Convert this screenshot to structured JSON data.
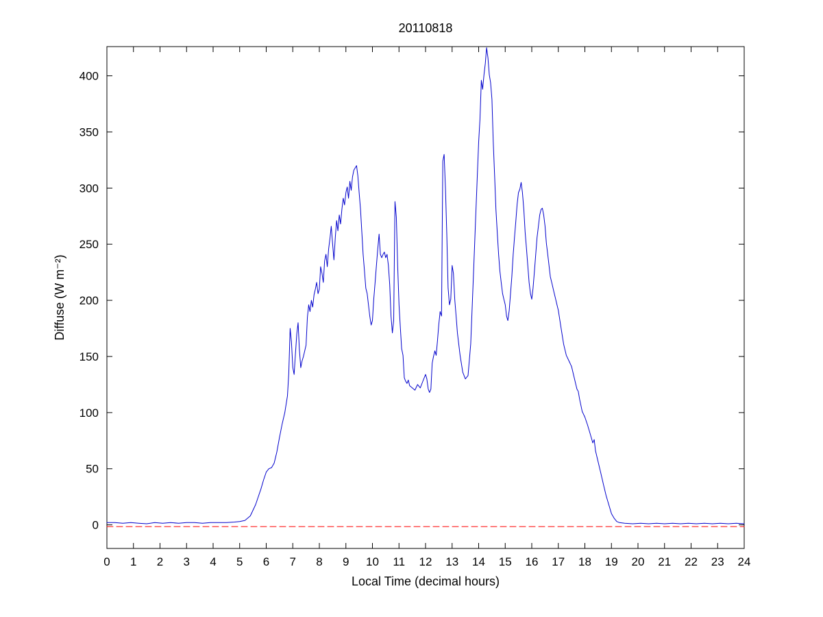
{
  "chart_data": {
    "type": "line",
    "title": "20110818",
    "xlabel": "Local Time (decimal hours)",
    "ylabel": "Diffuse (W m⁻²)",
    "xlim": [
      0,
      24
    ],
    "ylim": [
      -21,
      426
    ],
    "xticks": [
      0,
      1,
      2,
      3,
      4,
      5,
      6,
      7,
      8,
      9,
      10,
      11,
      12,
      13,
      14,
      15,
      16,
      17,
      18,
      19,
      20,
      21,
      22,
      23,
      24
    ],
    "yticks": [
      0,
      50,
      100,
      150,
      200,
      250,
      300,
      350,
      400
    ],
    "grid": false,
    "legend": null,
    "background": "#ffffff",
    "series": [
      {
        "name": "zero-reference",
        "color": "#ff0000",
        "style": "dashed",
        "points": [
          [
            0,
            -1.5
          ],
          [
            24,
            -1.5
          ]
        ]
      },
      {
        "name": "diffuse",
        "color": "#0000cc",
        "style": "solid",
        "points": [
          [
            0,
            2
          ],
          [
            0.3,
            2
          ],
          [
            0.6,
            1.5
          ],
          [
            0.9,
            2
          ],
          [
            1.2,
            1.5
          ],
          [
            1.5,
            1
          ],
          [
            1.8,
            2
          ],
          [
            2.1,
            1.5
          ],
          [
            2.4,
            2
          ],
          [
            2.7,
            1.5
          ],
          [
            3,
            2
          ],
          [
            3.3,
            2
          ],
          [
            3.6,
            1.5
          ],
          [
            3.9,
            2
          ],
          [
            4.2,
            2
          ],
          [
            4.5,
            2
          ],
          [
            4.8,
            2.5
          ],
          [
            5,
            3
          ],
          [
            5.2,
            4
          ],
          [
            5.4,
            8
          ],
          [
            5.6,
            18
          ],
          [
            5.8,
            32
          ],
          [
            5.9,
            40
          ],
          [
            6,
            47
          ],
          [
            6.1,
            50
          ],
          [
            6.2,
            51
          ],
          [
            6.3,
            55
          ],
          [
            6.4,
            65
          ],
          [
            6.5,
            78
          ],
          [
            6.6,
            90
          ],
          [
            6.7,
            100
          ],
          [
            6.8,
            115
          ],
          [
            6.85,
            135
          ],
          [
            6.9,
            175
          ],
          [
            6.95,
            163
          ],
          [
            7,
            140
          ],
          [
            7.05,
            134
          ],
          [
            7.1,
            152
          ],
          [
            7.15,
            170
          ],
          [
            7.2,
            180
          ],
          [
            7.25,
            156
          ],
          [
            7.3,
            140
          ],
          [
            7.35,
            146
          ],
          [
            7.4,
            150
          ],
          [
            7.45,
            155
          ],
          [
            7.5,
            160
          ],
          [
            7.55,
            185
          ],
          [
            7.6,
            196
          ],
          [
            7.65,
            190
          ],
          [
            7.7,
            200
          ],
          [
            7.75,
            194
          ],
          [
            7.8,
            205
          ],
          [
            7.85,
            210
          ],
          [
            7.9,
            216
          ],
          [
            7.95,
            206
          ],
          [
            8,
            210
          ],
          [
            8.05,
            230
          ],
          [
            8.1,
            224
          ],
          [
            8.15,
            216
          ],
          [
            8.2,
            235
          ],
          [
            8.25,
            241
          ],
          [
            8.3,
            230
          ],
          [
            8.35,
            246
          ],
          [
            8.4,
            255
          ],
          [
            8.45,
            266
          ],
          [
            8.5,
            250
          ],
          [
            8.55,
            236
          ],
          [
            8.6,
            256
          ],
          [
            8.65,
            271
          ],
          [
            8.7,
            262
          ],
          [
            8.75,
            276
          ],
          [
            8.8,
            268
          ],
          [
            8.85,
            281
          ],
          [
            8.9,
            291
          ],
          [
            8.95,
            285
          ],
          [
            9,
            296
          ],
          [
            9.05,
            301
          ],
          [
            9.1,
            291
          ],
          [
            9.15,
            306
          ],
          [
            9.2,
            298
          ],
          [
            9.25,
            310
          ],
          [
            9.3,
            316
          ],
          [
            9.4,
            320
          ],
          [
            9.45,
            311
          ],
          [
            9.5,
            296
          ],
          [
            9.55,
            281
          ],
          [
            9.6,
            261
          ],
          [
            9.65,
            241
          ],
          [
            9.7,
            226
          ],
          [
            9.75,
            211
          ],
          [
            9.8,
            206
          ],
          [
            9.85,
            196
          ],
          [
            9.9,
            186
          ],
          [
            9.95,
            178
          ],
          [
            10,
            182
          ],
          [
            10.05,
            201
          ],
          [
            10.1,
            216
          ],
          [
            10.15,
            231
          ],
          [
            10.2,
            246
          ],
          [
            10.25,
            259
          ],
          [
            10.3,
            241
          ],
          [
            10.35,
            238
          ],
          [
            10.4,
            241
          ],
          [
            10.45,
            243
          ],
          [
            10.5,
            238
          ],
          [
            10.55,
            241
          ],
          [
            10.6,
            231
          ],
          [
            10.65,
            214
          ],
          [
            10.7,
            186
          ],
          [
            10.75,
            171
          ],
          [
            10.8,
            182
          ],
          [
            10.85,
            288
          ],
          [
            10.9,
            274
          ],
          [
            10.95,
            231
          ],
          [
            11,
            196
          ],
          [
            11.05,
            176
          ],
          [
            11.1,
            157
          ],
          [
            11.15,
            151
          ],
          [
            11.2,
            131
          ],
          [
            11.25,
            128
          ],
          [
            11.3,
            126
          ],
          [
            11.35,
            129
          ],
          [
            11.4,
            124
          ],
          [
            11.5,
            122
          ],
          [
            11.6,
            120
          ],
          [
            11.7,
            125
          ],
          [
            11.8,
            122
          ],
          [
            11.9,
            128
          ],
          [
            12,
            134
          ],
          [
            12.05,
            130
          ],
          [
            12.1,
            121
          ],
          [
            12.15,
            118
          ],
          [
            12.2,
            121
          ],
          [
            12.25,
            144
          ],
          [
            12.3,
            150
          ],
          [
            12.35,
            155
          ],
          [
            12.4,
            151
          ],
          [
            12.45,
            164
          ],
          [
            12.5,
            179
          ],
          [
            12.55,
            190
          ],
          [
            12.6,
            186
          ],
          [
            12.65,
            324
          ],
          [
            12.7,
            330
          ],
          [
            12.75,
            299
          ],
          [
            12.8,
            259
          ],
          [
            12.85,
            211
          ],
          [
            12.9,
            196
          ],
          [
            12.95,
            201
          ],
          [
            13,
            231
          ],
          [
            13.05,
            224
          ],
          [
            13.1,
            201
          ],
          [
            13.15,
            186
          ],
          [
            13.2,
            171
          ],
          [
            13.3,
            151
          ],
          [
            13.4,
            136
          ],
          [
            13.5,
            130
          ],
          [
            13.6,
            133
          ],
          [
            13.7,
            161
          ],
          [
            13.8,
            221
          ],
          [
            13.9,
            281
          ],
          [
            14,
            341
          ],
          [
            14.05,
            361
          ],
          [
            14.1,
            396
          ],
          [
            14.15,
            388
          ],
          [
            14.2,
            401
          ],
          [
            14.25,
            411
          ],
          [
            14.3,
            425
          ],
          [
            14.35,
            416
          ],
          [
            14.4,
            401
          ],
          [
            14.45,
            394
          ],
          [
            14.5,
            379
          ],
          [
            14.55,
            341
          ],
          [
            14.6,
            311
          ],
          [
            14.65,
            281
          ],
          [
            14.7,
            261
          ],
          [
            14.75,
            241
          ],
          [
            14.8,
            226
          ],
          [
            14.85,
            216
          ],
          [
            14.9,
            206
          ],
          [
            14.95,
            201
          ],
          [
            15,
            196
          ],
          [
            15.05,
            186
          ],
          [
            15.1,
            182
          ],
          [
            15.15,
            191
          ],
          [
            15.2,
            206
          ],
          [
            15.25,
            221
          ],
          [
            15.3,
            241
          ],
          [
            15.35,
            256
          ],
          [
            15.4,
            271
          ],
          [
            15.45,
            286
          ],
          [
            15.5,
            296
          ],
          [
            15.55,
            299
          ],
          [
            15.6,
            305
          ],
          [
            15.65,
            296
          ],
          [
            15.7,
            281
          ],
          [
            15.75,
            261
          ],
          [
            15.8,
            246
          ],
          [
            15.85,
            231
          ],
          [
            15.9,
            216
          ],
          [
            15.95,
            206
          ],
          [
            16,
            201
          ],
          [
            16.05,
            211
          ],
          [
            16.1,
            226
          ],
          [
            16.15,
            241
          ],
          [
            16.2,
            256
          ],
          [
            16.25,
            266
          ],
          [
            16.3,
            276
          ],
          [
            16.35,
            281
          ],
          [
            16.4,
            282
          ],
          [
            16.45,
            276
          ],
          [
            16.5,
            266
          ],
          [
            16.55,
            251
          ],
          [
            16.6,
            241
          ],
          [
            16.65,
            231
          ],
          [
            16.7,
            221
          ],
          [
            16.75,
            216
          ],
          [
            16.8,
            211
          ],
          [
            16.85,
            206
          ],
          [
            16.9,
            201
          ],
          [
            16.95,
            196
          ],
          [
            17,
            191
          ],
          [
            17.1,
            176
          ],
          [
            17.2,
            161
          ],
          [
            17.3,
            151
          ],
          [
            17.4,
            146
          ],
          [
            17.5,
            141
          ],
          [
            17.6,
            131
          ],
          [
            17.7,
            121
          ],
          [
            17.75,
            119
          ],
          [
            17.8,
            112
          ],
          [
            17.9,
            101
          ],
          [
            18,
            96
          ],
          [
            18.1,
            89
          ],
          [
            18.2,
            81
          ],
          [
            18.3,
            73
          ],
          [
            18.35,
            76
          ],
          [
            18.4,
            66
          ],
          [
            18.5,
            56
          ],
          [
            18.6,
            46
          ],
          [
            18.7,
            36
          ],
          [
            18.8,
            26
          ],
          [
            18.9,
            18
          ],
          [
            19,
            10
          ],
          [
            19.1,
            6
          ],
          [
            19.2,
            3
          ],
          [
            19.3,
            2
          ],
          [
            19.5,
            1.5
          ],
          [
            19.8,
            1
          ],
          [
            20.1,
            1.5
          ],
          [
            20.4,
            1
          ],
          [
            20.7,
            1.5
          ],
          [
            21,
            1
          ],
          [
            21.3,
            1.5
          ],
          [
            21.6,
            1
          ],
          [
            21.9,
            1.5
          ],
          [
            22.2,
            1
          ],
          [
            22.5,
            1.5
          ],
          [
            22.8,
            1
          ],
          [
            23.1,
            1.5
          ],
          [
            23.4,
            1
          ],
          [
            23.7,
            1.5
          ],
          [
            24,
            1
          ]
        ]
      }
    ]
  }
}
